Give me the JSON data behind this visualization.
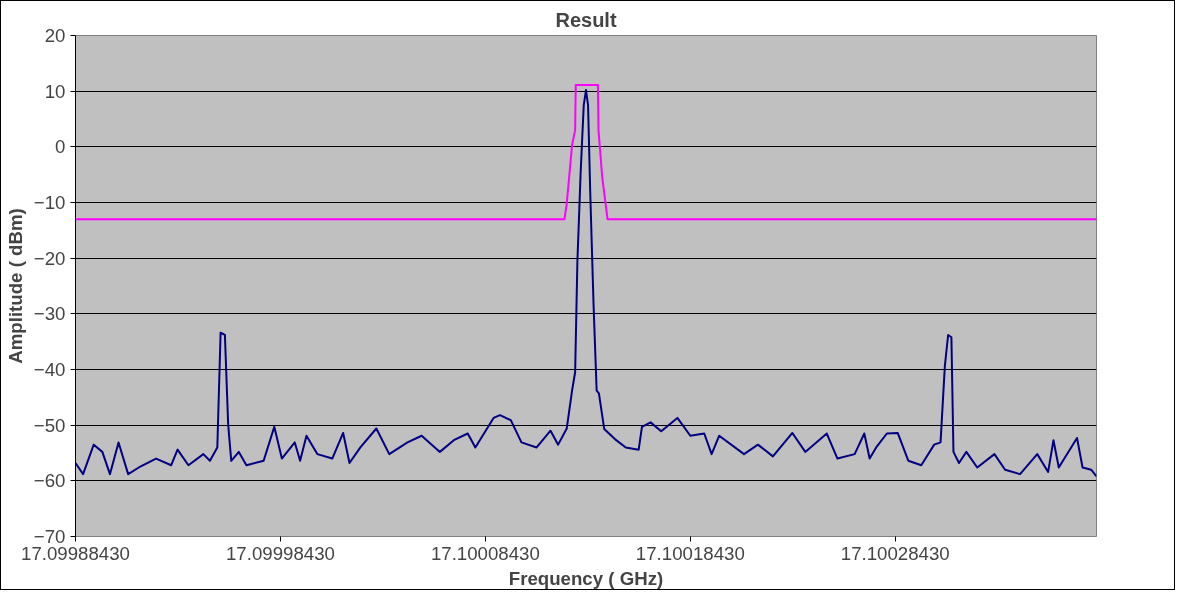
{
  "chart_data": {
    "type": "line",
    "title": "Result",
    "xlabel": "Frequency ( GHz)",
    "ylabel": "Amplitude ( dBm)",
    "xlim": [
      17.0998843,
      17.1003825
    ],
    "ylim": [
      -70,
      20
    ],
    "xticks": [
      {
        "value": 17.0998843,
        "label": "17.09988430"
      },
      {
        "value": 17.0999843,
        "label": "17.09998430"
      },
      {
        "value": 17.1000843,
        "label": "17.10008430"
      },
      {
        "value": 17.1001843,
        "label": "17.10018430"
      },
      {
        "value": 17.1002843,
        "label": "17.10028430"
      }
    ],
    "yticks": [
      -70,
      -60,
      -50,
      -40,
      -30,
      -20,
      -10,
      0,
      10,
      20
    ],
    "grid": "y",
    "marker": "none",
    "line_style": "solid",
    "series": [
      {
        "color": "#000080",
        "x": [
          17.0998843,
          17.099888,
          17.0998932,
          17.0998974,
          17.0999011,
          17.0999053,
          17.09991,
          17.0999152,
          17.0999236,
          17.099931,
          17.0999341,
          17.0999394,
          17.0999467,
          17.0999499,
          17.0999535,
          17.0999551,
          17.0999572,
          17.0999588,
          17.0999603,
          17.099964,
          17.0999677,
          17.0999761,
          17.0999813,
          17.099985,
          17.0999913,
          17.0999939,
          17.099997,
          17.1000023,
          17.1000096,
          17.1000149,
          17.100018,
          17.1000233,
          17.1000311,
          17.1000374,
          17.1000463,
          17.1000532,
          17.1000621,
          17.1000689,
          17.1000757,
          17.1000794,
          17.1000883,
          17.1000914,
          17.1000967,
          17.1001019,
          17.1001093,
          17.1001161,
          17.1001198,
          17.100124,
          17.1001266,
          17.1001281,
          17.1001292,
          17.1001308,
          17.1001323,
          17.1001334,
          17.1001344,
          17.1001355,
          17.1001371,
          17.1001386,
          17.1001397,
          17.1001423,
          17.1001475,
          17.1001528,
          17.1001591,
          17.1001607,
          17.1001649,
          17.1001701,
          17.100178,
          17.1001843,
          17.1001911,
          17.1001947,
          17.1001984,
          17.1002105,
          17.1002173,
          17.1002246,
          17.1002341,
          17.1002404,
          17.1002509,
          17.1002561,
          17.1002645,
          17.1002692,
          17.1002718,
          17.100275,
          17.1002802,
          17.1002855,
          17.1002907,
          17.100297,
          17.1003033,
          17.1003064,
          17.1003085,
          17.1003101,
          17.1003117,
          17.1003127,
          17.1003154,
          17.100319,
          17.1003243,
          17.1003327,
          17.1003379,
          17.1003452,
          17.1003536,
          17.1003589,
          17.1003615,
          17.1003641,
          17.100373,
          17.1003757,
          17.1003799,
          17.1003825
        ],
        "values": [
          -56.8,
          -58.8,
          -53.5,
          -54.8,
          -58.8,
          -53.1,
          -58.8,
          -57.6,
          -56,
          -57.2,
          -54.4,
          -57.2,
          -55.2,
          -56.4,
          -54,
          -33.4,
          -33.8,
          -49.9,
          -56.4,
          -54.8,
          -57.2,
          -56.4,
          -50.3,
          -56,
          -53.1,
          -56.4,
          -51.9,
          -55.2,
          -56,
          -51.4,
          -56.8,
          -54,
          -50.6,
          -55.2,
          -53.1,
          -51.9,
          -54.8,
          -52.7,
          -51.5,
          -54,
          -48.7,
          -48.2,
          -49.1,
          -53.1,
          -54,
          -51,
          -53.5,
          -50.6,
          -43.8,
          -40.5,
          -20.6,
          -4.5,
          7.5,
          10.2,
          7.5,
          -8.6,
          -28.5,
          -43.8,
          -44.3,
          -50.7,
          -52.5,
          -54,
          -54.4,
          -50.3,
          -49.5,
          -51.1,
          -48.7,
          -51.9,
          -51.5,
          -55.2,
          -51.9,
          -55.2,
          -53.5,
          -55.6,
          -51.4,
          -54.8,
          -51.5,
          -56,
          -55.2,
          -51.5,
          -56,
          -54,
          -51.5,
          -51.4,
          -56.4,
          -57.2,
          -53.5,
          -53.1,
          -39.4,
          -33.8,
          -34.2,
          -54.8,
          -56.8,
          -54.8,
          -57.6,
          -55.2,
          -58,
          -58.8,
          -55.2,
          -58.4,
          -52.7,
          -57.6,
          -52.3,
          -57.6,
          -58,
          -59.2
        ]
      },
      {
        "color": "#ff00ff",
        "x": [
          17.0998843,
          17.1001229,
          17.100124,
          17.1001266,
          17.1001281,
          17.1001284,
          17.1001392,
          17.1001395,
          17.1001413,
          17.1001439,
          17.1003825
        ],
        "values": [
          -13,
          -13,
          -10.2,
          0.3,
          3,
          11.1,
          11.1,
          3,
          -5.4,
          -13,
          -13
        ]
      }
    ]
  }
}
